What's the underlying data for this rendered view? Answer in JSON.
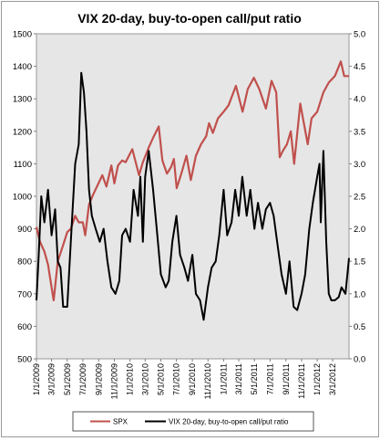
{
  "chart_data": {
    "type": "line",
    "title": "VIX 20-day, buy-to-open call/put ratio",
    "x_tick_labels": [
      "1/1/2009",
      "3/1/2009",
      "5/1/2009",
      "7/1/2009",
      "9/1/2009",
      "11/1/2009",
      "1/1/2010",
      "3/1/2010",
      "5/1/2010",
      "7/1/2010",
      "9/1/2010",
      "11/1/2010",
      "1/1/2011",
      "3/1/2011",
      "5/1/2011",
      "7/1/2011",
      "9/1/2011",
      "11/1/2011",
      "1/1/2012",
      "3/1/2012"
    ],
    "x_tick_dates": [
      "2009-01-01",
      "2009-03-01",
      "2009-05-01",
      "2009-07-01",
      "2009-09-01",
      "2009-11-01",
      "2010-01-01",
      "2010-03-01",
      "2010-05-01",
      "2010-07-01",
      "2010-09-01",
      "2010-11-01",
      "2011-01-01",
      "2011-03-01",
      "2011-05-01",
      "2011-07-01",
      "2011-09-01",
      "2011-11-01",
      "2012-01-01",
      "2012-03-01"
    ],
    "x_range": [
      "2009-01-01",
      "2012-05-04"
    ],
    "y_left": {
      "min": 500,
      "max": 1500,
      "step": 100,
      "tick_labels": [
        "500",
        "600",
        "700",
        "800",
        "900",
        "1000",
        "1100",
        "1200",
        "1300",
        "1400",
        "1500"
      ]
    },
    "y_right": {
      "min": 0.0,
      "max": 5.0,
      "step": 0.5,
      "tick_labels": [
        "0.0",
        "0.5",
        "1.0",
        "1.5",
        "2.0",
        "2.5",
        "3.0",
        "3.5",
        "4.0",
        "4.5",
        "5.0"
      ]
    },
    "grid": false,
    "plot_background": "#e6e6e6",
    "legend_position": "bottom",
    "series": [
      {
        "name": "SPX",
        "axis": "left",
        "color": "#c0504d",
        "points": [
          [
            "2009-01-01",
            905
          ],
          [
            "2009-01-15",
            860
          ],
          [
            "2009-02-01",
            830
          ],
          [
            "2009-02-15",
            790
          ],
          [
            "2009-03-01",
            720
          ],
          [
            "2009-03-09",
            680
          ],
          [
            "2009-03-25",
            800
          ],
          [
            "2009-04-15",
            850
          ],
          [
            "2009-05-01",
            890
          ],
          [
            "2009-05-15",
            900
          ],
          [
            "2009-06-01",
            940
          ],
          [
            "2009-06-15",
            920
          ],
          [
            "2009-07-01",
            920
          ],
          [
            "2009-07-10",
            880
          ],
          [
            "2009-07-25",
            975
          ],
          [
            "2009-08-10",
            1005
          ],
          [
            "2009-08-25",
            1030
          ],
          [
            "2009-09-15",
            1065
          ],
          [
            "2009-10-01",
            1030
          ],
          [
            "2009-10-20",
            1095
          ],
          [
            "2009-11-01",
            1040
          ],
          [
            "2009-11-15",
            1095
          ],
          [
            "2009-12-01",
            1110
          ],
          [
            "2009-12-15",
            1105
          ],
          [
            "2010-01-10",
            1145
          ],
          [
            "2010-02-05",
            1065
          ],
          [
            "2010-02-20",
            1105
          ],
          [
            "2010-03-15",
            1150
          ],
          [
            "2010-04-01",
            1180
          ],
          [
            "2010-04-23",
            1215
          ],
          [
            "2010-05-07",
            1110
          ],
          [
            "2010-05-25",
            1070
          ],
          [
            "2010-06-10",
            1090
          ],
          [
            "2010-06-21",
            1115
          ],
          [
            "2010-07-02",
            1025
          ],
          [
            "2010-07-20",
            1070
          ],
          [
            "2010-08-09",
            1125
          ],
          [
            "2010-08-26",
            1050
          ],
          [
            "2010-09-15",
            1125
          ],
          [
            "2010-10-05",
            1160
          ],
          [
            "2010-10-25",
            1185
          ],
          [
            "2010-11-05",
            1225
          ],
          [
            "2010-11-20",
            1195
          ],
          [
            "2010-12-10",
            1240
          ],
          [
            "2011-01-01",
            1260
          ],
          [
            "2011-01-20",
            1280
          ],
          [
            "2011-02-18",
            1340
          ],
          [
            "2011-03-16",
            1260
          ],
          [
            "2011-04-05",
            1330
          ],
          [
            "2011-04-29",
            1365
          ],
          [
            "2011-05-20",
            1330
          ],
          [
            "2011-06-15",
            1270
          ],
          [
            "2011-07-07",
            1355
          ],
          [
            "2011-07-25",
            1320
          ],
          [
            "2011-08-08",
            1120
          ],
          [
            "2011-08-20",
            1140
          ],
          [
            "2011-09-05",
            1160
          ],
          [
            "2011-09-20",
            1200
          ],
          [
            "2011-10-03",
            1100
          ],
          [
            "2011-10-27",
            1285
          ],
          [
            "2011-11-25",
            1160
          ],
          [
            "2011-12-10",
            1240
          ],
          [
            "2012-01-01",
            1260
          ],
          [
            "2012-01-25",
            1320
          ],
          [
            "2012-02-15",
            1350
          ],
          [
            "2012-03-10",
            1370
          ],
          [
            "2012-04-02",
            1415
          ],
          [
            "2012-04-15",
            1370
          ],
          [
            "2012-05-04",
            1370
          ]
        ]
      },
      {
        "name": "VIX 20-day, buy-to-open call/put ratio",
        "axis": "right",
        "color": "#000000",
        "points": [
          [
            "2009-01-01",
            0.9
          ],
          [
            "2009-01-10",
            1.6
          ],
          [
            "2009-01-20",
            2.5
          ],
          [
            "2009-02-01",
            2.1
          ],
          [
            "2009-02-15",
            2.6
          ],
          [
            "2009-03-01",
            1.9
          ],
          [
            "2009-03-15",
            2.3
          ],
          [
            "2009-03-25",
            1.5
          ],
          [
            "2009-04-05",
            1.4
          ],
          [
            "2009-04-15",
            0.8
          ],
          [
            "2009-05-01",
            0.8
          ],
          [
            "2009-05-15",
            1.8
          ],
          [
            "2009-06-01",
            3.0
          ],
          [
            "2009-06-15",
            3.3
          ],
          [
            "2009-06-25",
            4.4
          ],
          [
            "2009-07-05",
            4.1
          ],
          [
            "2009-07-15",
            3.5
          ],
          [
            "2009-07-25",
            2.6
          ],
          [
            "2009-08-05",
            2.2
          ],
          [
            "2009-08-20",
            2.0
          ],
          [
            "2009-09-05",
            1.8
          ],
          [
            "2009-09-20",
            2.0
          ],
          [
            "2009-10-05",
            1.5
          ],
          [
            "2009-10-20",
            1.1
          ],
          [
            "2009-11-05",
            1.0
          ],
          [
            "2009-11-20",
            1.2
          ],
          [
            "2009-12-01",
            1.9
          ],
          [
            "2009-12-15",
            2.0
          ],
          [
            "2010-01-01",
            1.8
          ],
          [
            "2010-01-15",
            2.6
          ],
          [
            "2010-02-01",
            2.2
          ],
          [
            "2010-02-10",
            2.8
          ],
          [
            "2010-02-20",
            1.8
          ],
          [
            "2010-03-01",
            2.8
          ],
          [
            "2010-03-15",
            3.2
          ],
          [
            "2010-04-01",
            2.6
          ],
          [
            "2010-04-15",
            2.0
          ],
          [
            "2010-05-01",
            1.3
          ],
          [
            "2010-05-20",
            1.1
          ],
          [
            "2010-06-01",
            1.2
          ],
          [
            "2010-06-15",
            1.8
          ],
          [
            "2010-07-01",
            2.2
          ],
          [
            "2010-07-15",
            1.6
          ],
          [
            "2010-08-01",
            1.4
          ],
          [
            "2010-08-15",
            1.2
          ],
          [
            "2010-09-01",
            1.6
          ],
          [
            "2010-09-15",
            1.0
          ],
          [
            "2010-10-01",
            0.9
          ],
          [
            "2010-10-15",
            0.6
          ],
          [
            "2010-11-01",
            1.1
          ],
          [
            "2010-11-15",
            1.4
          ],
          [
            "2010-12-01",
            1.5
          ],
          [
            "2010-12-15",
            1.9
          ],
          [
            "2011-01-01",
            2.6
          ],
          [
            "2011-01-15",
            1.9
          ],
          [
            "2011-02-01",
            2.1
          ],
          [
            "2011-02-15",
            2.6
          ],
          [
            "2011-03-01",
            2.2
          ],
          [
            "2011-03-15",
            2.8
          ],
          [
            "2011-04-01",
            2.2
          ],
          [
            "2011-04-15",
            2.6
          ],
          [
            "2011-05-01",
            2.0
          ],
          [
            "2011-05-15",
            2.4
          ],
          [
            "2011-06-01",
            2.0
          ],
          [
            "2011-06-15",
            2.3
          ],
          [
            "2011-07-01",
            2.4
          ],
          [
            "2011-07-15",
            2.2
          ],
          [
            "2011-08-01",
            1.7
          ],
          [
            "2011-08-15",
            1.3
          ],
          [
            "2011-09-01",
            1.0
          ],
          [
            "2011-09-15",
            1.5
          ],
          [
            "2011-10-01",
            0.8
          ],
          [
            "2011-10-15",
            0.75
          ],
          [
            "2011-11-01",
            1.0
          ],
          [
            "2011-11-15",
            1.3
          ],
          [
            "2011-12-01",
            2.0
          ],
          [
            "2011-12-15",
            2.4
          ],
          [
            "2012-01-01",
            2.8
          ],
          [
            "2012-01-10",
            3.0
          ],
          [
            "2012-01-15",
            2.1
          ],
          [
            "2012-01-25",
            3.2
          ],
          [
            "2012-02-05",
            1.8
          ],
          [
            "2012-02-15",
            1.0
          ],
          [
            "2012-02-25",
            0.9
          ],
          [
            "2012-03-10",
            0.9
          ],
          [
            "2012-03-25",
            0.95
          ],
          [
            "2012-04-05",
            1.1
          ],
          [
            "2012-04-20",
            1.0
          ],
          [
            "2012-05-04",
            1.55
          ]
        ]
      }
    ]
  }
}
